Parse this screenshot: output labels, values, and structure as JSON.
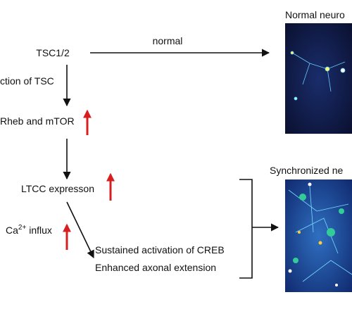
{
  "labels": {
    "normal_title": "Normal neuro",
    "tsc": "TSC1/2",
    "normal": "normal",
    "loss": "ction of TSC",
    "rheb": "Rheb and mTOR",
    "ltcc": "LTCC expresson",
    "ca": {
      "base": "Ca",
      "sup": "2+",
      "rest": " influx"
    },
    "creb": "Sustained activation of CREB",
    "axon": "Enhanced axonal extension",
    "sync_title": "Synchronized ne"
  }
}
